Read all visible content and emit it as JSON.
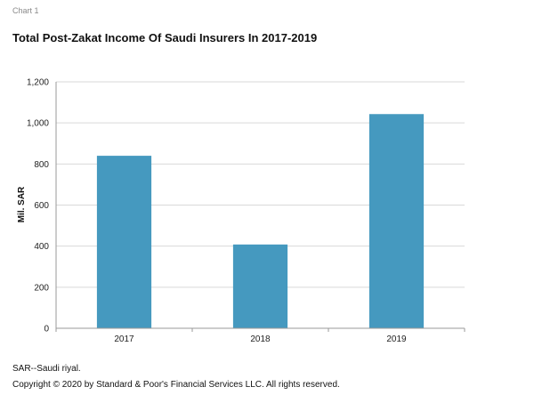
{
  "header": {
    "chart_number": "Chart 1",
    "title": "Total Post-Zakat Income Of Saudi Insurers In 2017-2019"
  },
  "footer": {
    "note": "SAR--Saudi riyal.",
    "copyright": "Copyright © 2020 by Standard & Poor's Financial Services LLC. All rights reserved."
  },
  "colors": {
    "bar": "#4599bf",
    "grid": "#d9d9d9",
    "axis": "#999999"
  },
  "chart_data": {
    "type": "bar",
    "title": "Total Post-Zakat Income Of Saudi Insurers In 2017-2019",
    "categories": [
      "2017",
      "2018",
      "2019"
    ],
    "values": [
      840,
      408,
      1043
    ],
    "xlabel": "",
    "ylabel": "Mil. SAR",
    "ylim": [
      0,
      1200
    ],
    "yticks": [
      0,
      200,
      400,
      600,
      800,
      1000,
      1200
    ],
    "ytick_labels": [
      "0",
      "200",
      "400",
      "600",
      "800",
      "1,000",
      "1,200"
    ],
    "grid": true,
    "legend": "none"
  }
}
